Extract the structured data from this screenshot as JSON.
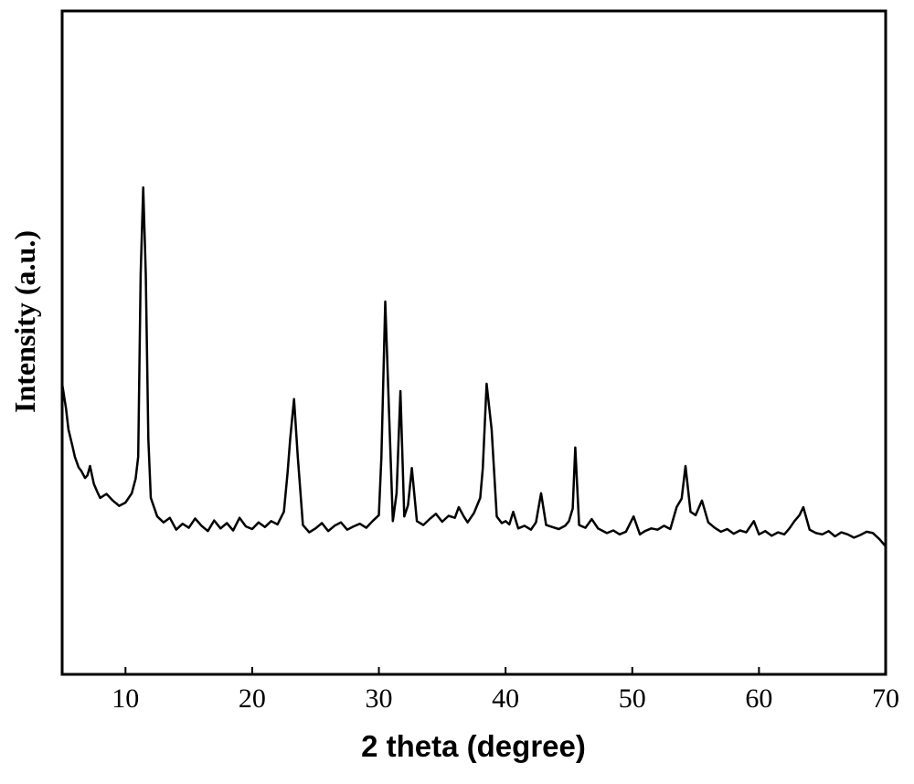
{
  "chart_data": {
    "type": "line",
    "x_label": "2 theta (degree)",
    "y_label": "Intensity (a.u.)",
    "xlim": [
      5,
      70
    ],
    "ylim": [
      0,
      100
    ],
    "xticks": [
      10,
      20,
      30,
      40,
      50,
      60,
      70
    ],
    "color": "#000000",
    "x": [
      5,
      5.3,
      5.5,
      5.8,
      6,
      6.3,
      6.5,
      6.8,
      7,
      7.2,
      7.5,
      7.8,
      8,
      8.5,
      9,
      9.5,
      10,
      10.5,
      10.8,
      11,
      11.2,
      11.4,
      11.6,
      11.8,
      12,
      12.5,
      13,
      13.5,
      14,
      14.5,
      15,
      15.5,
      16,
      16.5,
      17,
      17.5,
      18,
      18.5,
      19,
      19.5,
      20,
      20.5,
      21,
      21.5,
      22,
      22.5,
      22.8,
      23,
      23.3,
      23.6,
      24,
      24.5,
      25,
      25.5,
      26,
      26.5,
      27,
      27.5,
      28,
      28.5,
      29,
      29.5,
      30,
      30.2,
      30.5,
      30.8,
      31.1,
      31.4,
      31.7,
      32,
      32.3,
      32.6,
      33,
      33.5,
      34,
      34.5,
      35,
      35.5,
      36,
      36.3,
      36.7,
      37,
      37.5,
      38,
      38.2,
      38.5,
      38.9,
      39.3,
      39.7,
      40,
      40.3,
      40.6,
      41,
      41.5,
      42,
      42.4,
      42.8,
      43.2,
      43.7,
      44.2,
      44.7,
      45,
      45.3,
      45.5,
      45.8,
      46.3,
      46.8,
      47.3,
      48,
      48.5,
      49,
      49.5,
      50.1,
      50.6,
      51,
      51.5,
      52,
      52.5,
      53,
      53.5,
      53.9,
      54.2,
      54.6,
      55,
      55.5,
      56,
      56.5,
      57,
      57.5,
      58,
      58.5,
      59,
      59.6,
      60,
      60.5,
      61,
      61.5,
      62,
      62.4,
      62.8,
      63.2,
      63.5,
      64,
      64.5,
      65,
      65.5,
      66,
      66.5,
      67,
      67.5,
      68,
      68.5,
      69,
      69.5,
      70
    ],
    "values": [
      43.8,
      40.1,
      36.9,
      34.5,
      32.8,
      31.2,
      30.7,
      29.6,
      30.0,
      31.4,
      28.7,
      27.4,
      26.6,
      27.2,
      26.2,
      25.4,
      25.9,
      27.3,
      29.5,
      32.8,
      60.3,
      73.4,
      60.3,
      35.5,
      26.6,
      23.8,
      22.9,
      23.6,
      21.8,
      22.7,
      22.1,
      23.5,
      22.4,
      21.6,
      23.2,
      22.0,
      22.8,
      21.7,
      23.6,
      22.3,
      21.9,
      22.9,
      22.2,
      23.1,
      22.6,
      24.5,
      30.5,
      35.5,
      41.5,
      32.8,
      22.5,
      21.4,
      22.0,
      22.8,
      21.6,
      22.4,
      22.9,
      21.8,
      22.3,
      22.7,
      22.1,
      23.1,
      24.0,
      32.8,
      56.2,
      39.7,
      23.1,
      27.3,
      42.7,
      23.8,
      25.5,
      31.1,
      23.1,
      22.5,
      23.4,
      24.2,
      23.0,
      23.9,
      23.6,
      25.2,
      23.8,
      22.9,
      24.3,
      26.6,
      31.0,
      43.8,
      36.9,
      23.8,
      22.8,
      23.1,
      22.6,
      24.5,
      22.0,
      22.4,
      21.8,
      22.9,
      27.3,
      22.5,
      22.2,
      21.9,
      22.4,
      23.1,
      25.0,
      34.2,
      22.5,
      22.1,
      23.4,
      22.0,
      21.3,
      21.7,
      21.1,
      21.5,
      23.8,
      21.1,
      21.6,
      22.0,
      21.8,
      22.4,
      21.9,
      25.2,
      26.5,
      31.4,
      24.5,
      24.0,
      26.2,
      22.9,
      22.1,
      21.5,
      21.9,
      21.2,
      21.7,
      21.4,
      23.1,
      21.1,
      21.6,
      20.9,
      21.4,
      21.1,
      22.0,
      23.1,
      24.0,
      25.2,
      21.8,
      21.3,
      21.1,
      21.6,
      20.8,
      21.4,
      21.1,
      20.6,
      21.0,
      21.5,
      21.3,
      20.4,
      19.3
    ]
  }
}
